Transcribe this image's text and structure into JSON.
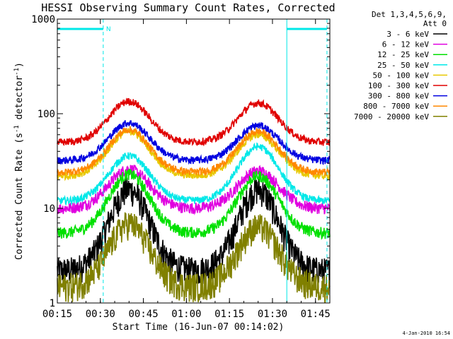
{
  "chart_data": {
    "type": "line",
    "title": "HESSI Observing Summary Count Rates, Corrected",
    "xlabel": "Start Time (16-Jun-07 00:14:02)",
    "ylabel_main": "Corrected Count Rate (s",
    "ylabel_sup1": "-1",
    "ylabel_mid": " detector",
    "ylabel_sup2": "-1",
    "ylabel_end": ")",
    "ylim": [
      1,
      1000
    ],
    "yscale": "log",
    "xlim": [
      15,
      110
    ],
    "x_unit": "minutes after 00:00 on 16-Jun-07",
    "x_ticks": [
      {
        "x": 15,
        "label": "00:15"
      },
      {
        "x": 30,
        "label": "00:30"
      },
      {
        "x": 45,
        "label": "00:45"
      },
      {
        "x": 60,
        "label": "01:00"
      },
      {
        "x": 75,
        "label": "01:15"
      },
      {
        "x": 90,
        "label": "01:30"
      },
      {
        "x": 105,
        "label": "01:45"
      }
    ],
    "y_ticks": [
      {
        "y": 1,
        "label": "1"
      },
      {
        "y": 10,
        "label": "10"
      },
      {
        "y": 100,
        "label": "100"
      },
      {
        "y": 1000,
        "label": "1000"
      }
    ],
    "night_bar_label": "N",
    "night_periods": [
      [
        15,
        31
      ],
      [
        95,
        109
      ]
    ],
    "vlines_solid": [
      15,
      95
    ],
    "vlines_dashed": [
      31,
      109
    ],
    "legend_header": [
      "Det 1,3,4,5,6,9,",
      "Att 0"
    ],
    "legend_position": "right",
    "peaks_x": [
      40,
      85
    ],
    "series": [
      {
        "name": "3 - 6 keV",
        "color": "#000000",
        "base": 2.2,
        "peak1": 16,
        "peak2": 16
      },
      {
        "name": "6 - 12 keV",
        "color": "#e000e0",
        "base": 10,
        "peak1": 26,
        "peak2": 25
      },
      {
        "name": "12 - 25 keV",
        "color": "#00e000",
        "base": 5.5,
        "peak1": 23,
        "peak2": 22
      },
      {
        "name": "25 - 50 keV",
        "color": "#00e8e8",
        "base": 12,
        "peak1": 36,
        "peak2": 45
      },
      {
        "name": "50 - 100 keV",
        "color": "#e8c800",
        "base": 22,
        "peak1": 65,
        "peak2": 60
      },
      {
        "name": "100 - 300 keV",
        "color": "#e00000",
        "base": 50,
        "peak1": 135,
        "peak2": 130
      },
      {
        "name": "300 - 800 keV",
        "color": "#0000e0",
        "base": 32,
        "peak1": 80,
        "peak2": 75
      },
      {
        "name": "800 - 7000 keV",
        "color": "#ff8800",
        "base": 24,
        "peak1": 68,
        "peak2": 65
      },
      {
        "name": "7000 - 20000 keV",
        "color": "#808000",
        "base": 1.5,
        "peak1": 7,
        "peak2": 6.5
      }
    ]
  },
  "timestamp": "4-Jan-2010 16:54"
}
